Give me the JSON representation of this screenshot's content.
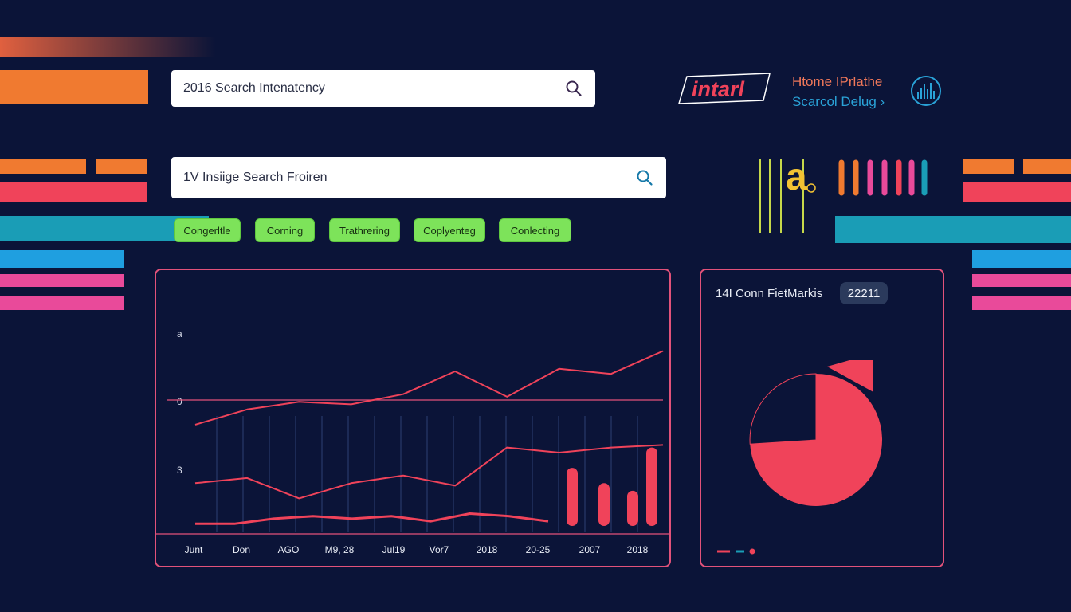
{
  "search_primary": {
    "value": "2016 Search Intenatency",
    "icon": "search-icon"
  },
  "search_secondary": {
    "value": "1V Insiige Search Froiren",
    "icon": "search-icon"
  },
  "filters": [
    {
      "label": "Congerltle"
    },
    {
      "label": "Corning"
    },
    {
      "label": "Trathrering"
    },
    {
      "label": "Coplyenteg"
    },
    {
      "label": "Conlecting"
    }
  ],
  "brand": {
    "logo_text": "intarl",
    "nav_line1": "Htome IPrlathe",
    "nav_line2": "Scarcol Delug ›",
    "nav_icon": "chart-bars-icon"
  },
  "deco_glyph": "a",
  "line_panel": {
    "y_labels": [
      "a",
      "0",
      "3"
    ],
    "x_labels": [
      "Junt",
      "Don",
      "AGO",
      "M9, 28",
      "Jul19",
      "Vor7",
      "2018",
      "20-25",
      "2007",
      "2018"
    ]
  },
  "kpi_panel": {
    "title": "14I Conn FietMarkis",
    "badge": "22211"
  },
  "colors": {
    "background": "#0b1438",
    "accent_red": "#f0435a",
    "accent_green": "#7de35a",
    "accent_orange": "#f07a30",
    "accent_teal": "#1a9db6",
    "accent_pink": "#e94a9a",
    "panel_border": "#e2527a"
  },
  "chart_data": [
    {
      "type": "line",
      "x": [
        "Junt",
        "Don",
        "AGO",
        "M9, 28",
        "Jul19",
        "Vor7",
        "2018",
        "20-25",
        "2007",
        "2018"
      ],
      "series": [
        {
          "values": [
            0.3,
            0.9,
            1.2,
            1.1,
            1.5,
            2.4,
            1.4,
            2.5,
            2.3,
            3.2
          ]
        },
        {
          "values": [
            -2.0,
            -1.8,
            -2.6,
            -2.0,
            -1.7,
            -2.1,
            -0.6,
            -0.8,
            -0.6,
            -0.5
          ]
        },
        {
          "values": [
            -3.6,
            -3.6,
            -3.4,
            -3.3,
            -3.4,
            -3.3,
            -3.5,
            -3.2,
            -3.3,
            -3.5
          ]
        }
      ],
      "bars": [
        2.6,
        2.0,
        1.7,
        3.4
      ],
      "ylim": [
        -4,
        4
      ]
    },
    {
      "type": "pie",
      "values": [
        74,
        26
      ],
      "colors": [
        "#f0435a",
        "#0b1438"
      ]
    }
  ]
}
